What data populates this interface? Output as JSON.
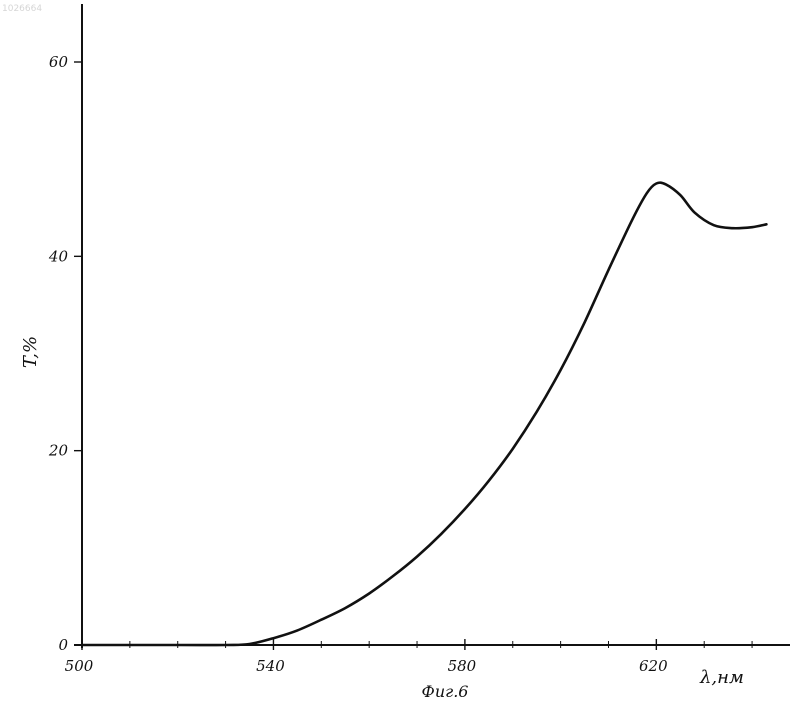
{
  "stamp": "1026664",
  "figure_caption": "Фиг.6",
  "chart_data": {
    "type": "line",
    "ylabel": "T,%",
    "xlabel": "λ,нм",
    "xlim": [
      500,
      645
    ],
    "ylim": [
      0,
      66
    ],
    "x_ticks": [
      500,
      540,
      580,
      620
    ],
    "x_minor_ticks": [
      510,
      520,
      530,
      550,
      560,
      570,
      590,
      600,
      610,
      630,
      640
    ],
    "y_ticks": [
      0,
      20,
      40,
      60
    ],
    "grid": false,
    "series": [
      {
        "color": "#111111",
        "x": [
          500,
          520,
          530,
          535,
          540,
          545,
          550,
          555,
          560,
          565,
          570,
          575,
          580,
          585,
          590,
          595,
          600,
          605,
          610,
          615,
          618,
          620,
          622,
          625,
          628,
          632,
          636,
          640,
          643
        ],
        "y": [
          0,
          0,
          0,
          0.1,
          0.7,
          1.5,
          2.6,
          3.8,
          5.3,
          7.1,
          9.1,
          11.4,
          14.0,
          16.9,
          20.2,
          24.0,
          28.3,
          33.2,
          38.6,
          43.8,
          46.5,
          47.5,
          47.4,
          46.3,
          44.5,
          43.2,
          42.9,
          43.0,
          43.3
        ]
      }
    ]
  }
}
